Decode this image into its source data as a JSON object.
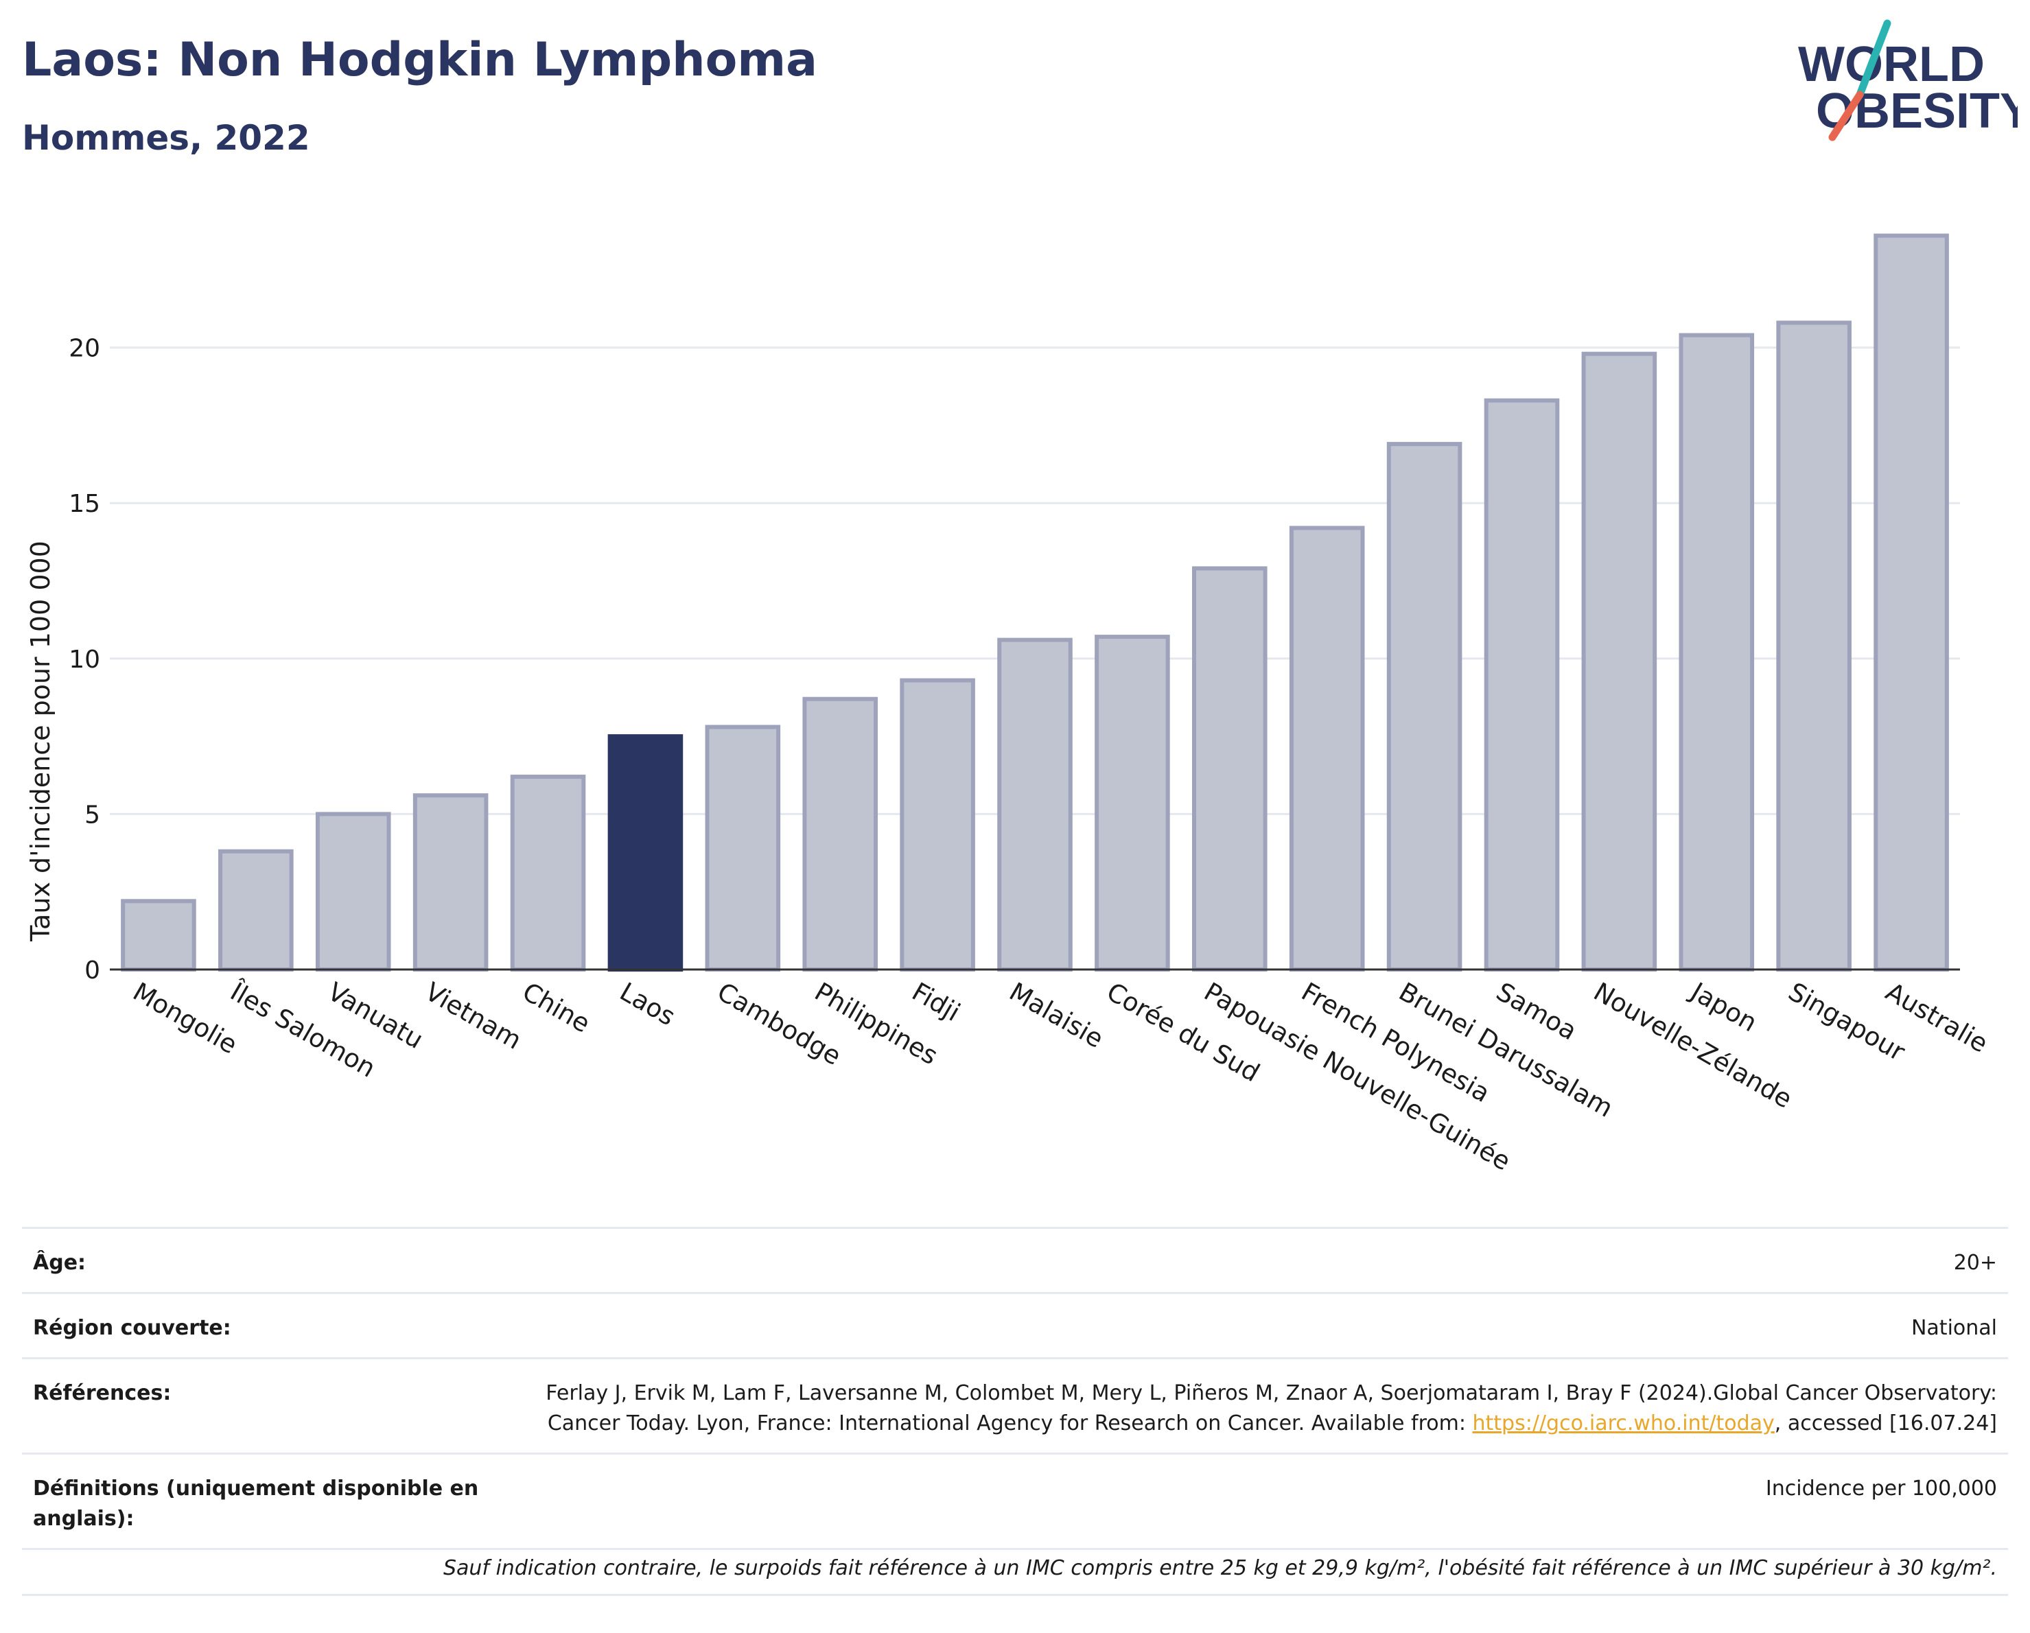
{
  "header": {
    "title": "Laos: Non Hodgkin Lymphoma",
    "subtitle": "Hommes, 2022"
  },
  "logo": {
    "line1": "WORLD",
    "line2": "OBESITY",
    "colors": {
      "text": "#2b3561",
      "slash_top": "#2bb3b1",
      "slash_bottom": "#e8664f"
    }
  },
  "chart_data": {
    "type": "bar",
    "title": "Laos: Non Hodgkin Lymphoma",
    "subtitle": "Hommes, 2022",
    "ylabel": "Taux d'incidence pour 100 000",
    "xlabel": "",
    "ylim": [
      0,
      25
    ],
    "yticks": [
      0,
      5,
      10,
      15,
      20
    ],
    "grid": true,
    "categories": [
      "Mongolie",
      "Îles Salomon",
      "Vanuatu",
      "Vietnam",
      "Chine",
      "Laos",
      "Cambodge",
      "Philippines",
      "Fidji",
      "Malaisie",
      "Corée du Sud",
      "Papouasie Nouvelle-Guinée",
      "French Polynesia",
      "Brunei Darussalam",
      "Samoa",
      "Nouvelle-Zélande",
      "Japon",
      "Singapour",
      "Australie"
    ],
    "values": [
      2.2,
      3.8,
      5.0,
      5.6,
      6.2,
      7.5,
      7.8,
      8.7,
      9.3,
      10.6,
      10.7,
      12.9,
      14.2,
      16.9,
      18.3,
      19.8,
      20.4,
      20.8,
      23.6
    ],
    "highlight": "Laos",
    "colors": {
      "highlight": "#2b3561",
      "bar_fill": "#c0c3d0",
      "bar_stroke": "#9ea3bb"
    }
  },
  "info": {
    "age_label": "Âge:",
    "age_value": "20+",
    "region_label": "Région couverte:",
    "region_value": "National",
    "references_label": "Références:",
    "references_text_1": "Ferlay J, Ervik M, Lam F, Laversanne M, Colombet M, Mery L, Piñeros M, Znaor A, Soerjomataram I, Bray F (2024).Global Cancer Observatory: Cancer Today. Lyon, France: International Agency for Research on Cancer. Available from: ",
    "references_link": "https://gco.iarc.who.int/today",
    "references_text_2": ", accessed [16.07.24]",
    "definitions_label": "Définitions (uniquement disponible en anglais):",
    "definitions_value": "Incidence per 100,000",
    "footnote": "Sauf indication contraire, le surpoids fait référence à un IMC compris entre 25 kg et 29,9 kg/m², l'obésité fait référence à un IMC supérieur à 30 kg/m²."
  }
}
